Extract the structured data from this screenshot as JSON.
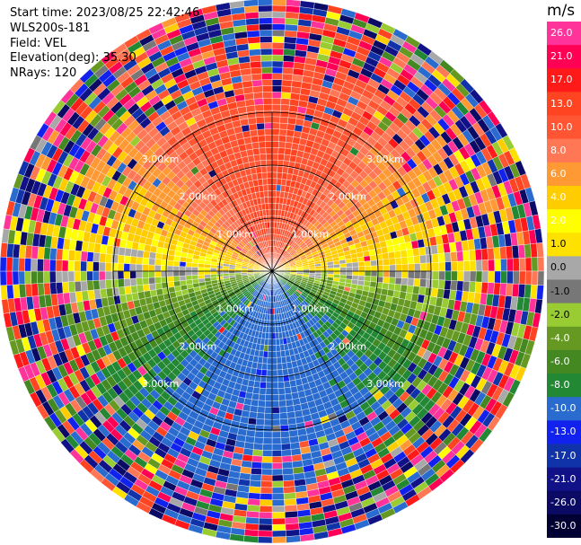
{
  "header": {
    "start_time": "Start time: 2023/08/25 22:42:46",
    "instrument": "WLS200s-181",
    "field": "Field: VEL",
    "elevation": "Elevation(deg): 35.30",
    "nrays": "NRays: 120"
  },
  "colorbar": {
    "title": "m/s",
    "tick_labels": [
      "26.0",
      "21.0",
      "17.0",
      "13.0",
      "10.0",
      "8.0",
      "6.0",
      "4.0",
      "2.0",
      "1.0",
      "0.0",
      "-1.0",
      "-2.0",
      "-4.0",
      "-6.0",
      "-8.0",
      "-10.0",
      "-13.0",
      "-17.0",
      "-21.0",
      "-26.0",
      "-30.0"
    ],
    "segment_colors": [
      "#ff3399",
      "#ff0055",
      "#ff1a1a",
      "#ff4422",
      "#ff5533",
      "#ff7755",
      "#ff9933",
      "#ffcc00",
      "#ffff00",
      "#ffe100",
      "#a8a8a8",
      "#777777",
      "#99cc33",
      "#669922",
      "#448822",
      "#228833",
      "#2a6bcf",
      "#1122ee",
      "#1133aa",
      "#111188",
      "#0b0b66",
      "#000033"
    ]
  },
  "range_rings": [
    "1.00km",
    "2.00km",
    "3.00km"
  ],
  "chart_data": {
    "type": "heatmap",
    "projection": "polar PPI",
    "field": "VEL",
    "units": "m/s",
    "nrays": 120,
    "rings_km": [
      1,
      2,
      3
    ],
    "value_range": [
      -30,
      26
    ],
    "velocity_pattern": {
      "north_sector": 10,
      "east_west": 2,
      "center_band": 0,
      "south_sector": -9
    }
  }
}
